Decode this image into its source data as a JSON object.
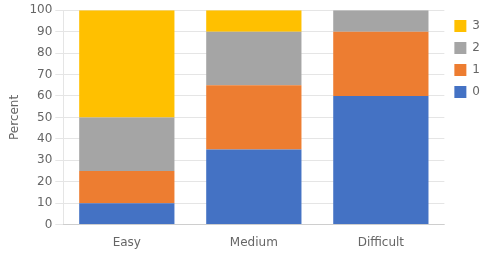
{
  "chart_data": {
    "type": "bar",
    "stacked": true,
    "categories": [
      "Easy",
      "Medium",
      "Difficult"
    ],
    "series": [
      {
        "name": "0",
        "color": "#4472C4",
        "values": [
          10,
          35,
          60
        ]
      },
      {
        "name": "1",
        "color": "#ED7D31",
        "values": [
          15,
          30,
          30
        ]
      },
      {
        "name": "2",
        "color": "#A5A5A5",
        "values": [
          25,
          25,
          10
        ]
      },
      {
        "name": "3",
        "color": "#FFC000",
        "values": [
          50,
          10,
          0
        ]
      }
    ],
    "ylabel": "Percent",
    "ylim": [
      0,
      100
    ],
    "yticks": [
      0,
      10,
      20,
      30,
      40,
      50,
      60,
      70,
      80,
      90,
      100
    ],
    "grid": true,
    "legend": "right"
  }
}
